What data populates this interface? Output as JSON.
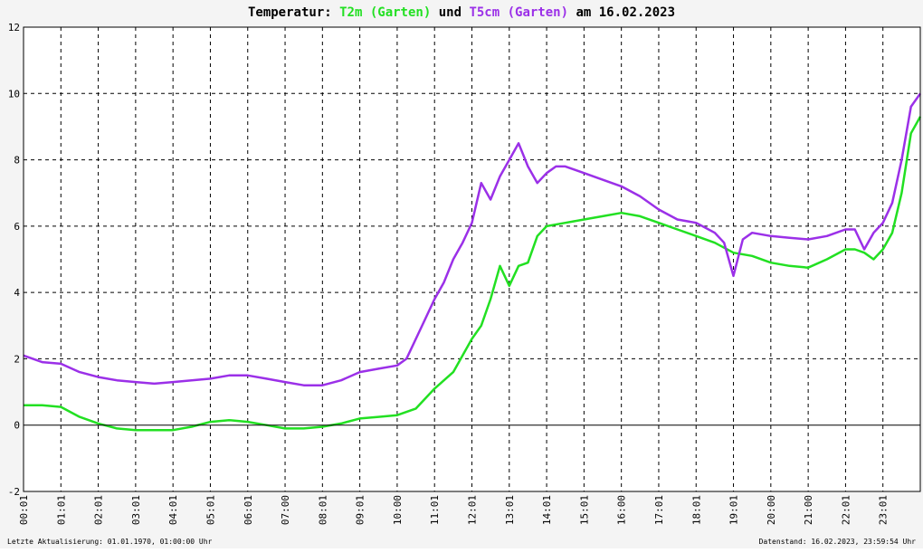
{
  "title": {
    "prefix": "Temperatur: ",
    "series1": "T2m (Garten)",
    "mid": " und ",
    "series2": "T5cm (Garten)",
    "suffix": " am 16.02.2023"
  },
  "footer": {
    "left": "Letzte Aktualisierung: 01.01.1970, 01:00:00 Uhr",
    "right": "Datenstand: 16.02.2023, 23:59:54 Uhr"
  },
  "colors": {
    "t2m": "#22e022",
    "t5cm": "#9b30e8",
    "grid": "#000000",
    "plot_bg": "#ffffff",
    "page_bg": "#f4f4f4"
  },
  "chart_data": {
    "type": "line",
    "title": "Temperatur: T2m (Garten) und T5cm (Garten) am 16.02.2023",
    "xlabel": "",
    "ylabel": "",
    "xlim": [
      0,
      24
    ],
    "ylim": [
      -2,
      12
    ],
    "yticks": [
      "12",
      "10",
      "8",
      "6",
      "4",
      "2",
      "0",
      "-2"
    ],
    "xticks": [
      "00:01",
      "01:01",
      "02:01",
      "03:01",
      "04:01",
      "05:01",
      "06:01",
      "07:00",
      "08:01",
      "09:01",
      "10:00",
      "11:01",
      "12:01",
      "13:01",
      "14:01",
      "15:01",
      "16:00",
      "17:01",
      "18:01",
      "19:01",
      "20:00",
      "21:00",
      "22:01",
      "23:01"
    ],
    "grid": true,
    "legend": "in title",
    "series": [
      {
        "name": "T2m (Garten)",
        "x": [
          0,
          0.5,
          1,
          1.5,
          2,
          2.5,
          3,
          3.5,
          4,
          4.5,
          5,
          5.5,
          6,
          6.5,
          7,
          7.5,
          8,
          8.5,
          9,
          9.5,
          10,
          10.5,
          11,
          11.5,
          12,
          12.25,
          12.5,
          12.75,
          13,
          13.25,
          13.5,
          13.75,
          14,
          14.5,
          15,
          15.5,
          16,
          16.5,
          17,
          17.5,
          18,
          18.5,
          19,
          19.5,
          20,
          20.5,
          21,
          21.5,
          22,
          22.25,
          22.5,
          22.75,
          23,
          23.25,
          23.5,
          23.75,
          24
        ],
        "y": [
          0.6,
          0.6,
          0.55,
          0.25,
          0.05,
          -0.1,
          -0.15,
          -0.15,
          -0.15,
          -0.05,
          0.1,
          0.15,
          0.1,
          0.0,
          -0.1,
          -0.1,
          -0.05,
          0.05,
          0.2,
          0.25,
          0.3,
          0.5,
          1.1,
          1.6,
          2.6,
          3.0,
          3.8,
          4.8,
          4.2,
          4.8,
          4.9,
          5.7,
          6.0,
          6.1,
          6.2,
          6.3,
          6.4,
          6.3,
          6.1,
          5.9,
          5.7,
          5.5,
          5.2,
          5.1,
          4.9,
          4.8,
          4.75,
          5.0,
          5.3,
          5.3,
          5.2,
          5.0,
          5.3,
          5.8,
          7.0,
          8.8,
          9.3
        ]
      },
      {
        "name": "T5cm (Garten)",
        "x": [
          0,
          0.5,
          1,
          1.5,
          2,
          2.5,
          3,
          3.5,
          4,
          4.5,
          5,
          5.5,
          6,
          6.5,
          7,
          7.5,
          8,
          8.5,
          9,
          9.5,
          10,
          10.25,
          10.5,
          10.75,
          11,
          11.25,
          11.5,
          11.75,
          12,
          12.25,
          12.5,
          12.75,
          13,
          13.25,
          13.5,
          13.75,
          14,
          14.25,
          14.5,
          14.75,
          15,
          15.5,
          16,
          16.5,
          17,
          17.5,
          18,
          18.5,
          18.75,
          19,
          19.25,
          19.5,
          20,
          20.5,
          21,
          21.5,
          22,
          22.25,
          22.5,
          22.75,
          23,
          23.25,
          23.5,
          23.75,
          24
        ],
        "y": [
          2.1,
          1.9,
          1.85,
          1.6,
          1.45,
          1.35,
          1.3,
          1.25,
          1.3,
          1.35,
          1.4,
          1.5,
          1.5,
          1.4,
          1.3,
          1.2,
          1.2,
          1.35,
          1.6,
          1.7,
          1.8,
          2.0,
          2.6,
          3.2,
          3.8,
          4.3,
          5.0,
          5.5,
          6.1,
          7.3,
          6.8,
          7.5,
          8.0,
          8.5,
          7.8,
          7.3,
          7.6,
          7.8,
          7.8,
          7.7,
          7.6,
          7.4,
          7.2,
          6.9,
          6.5,
          6.2,
          6.1,
          5.8,
          5.5,
          4.5,
          5.6,
          5.8,
          5.7,
          5.65,
          5.6,
          5.7,
          5.9,
          5.9,
          5.3,
          5.8,
          6.1,
          6.7,
          8.0,
          9.6,
          10.0
        ]
      }
    ]
  }
}
